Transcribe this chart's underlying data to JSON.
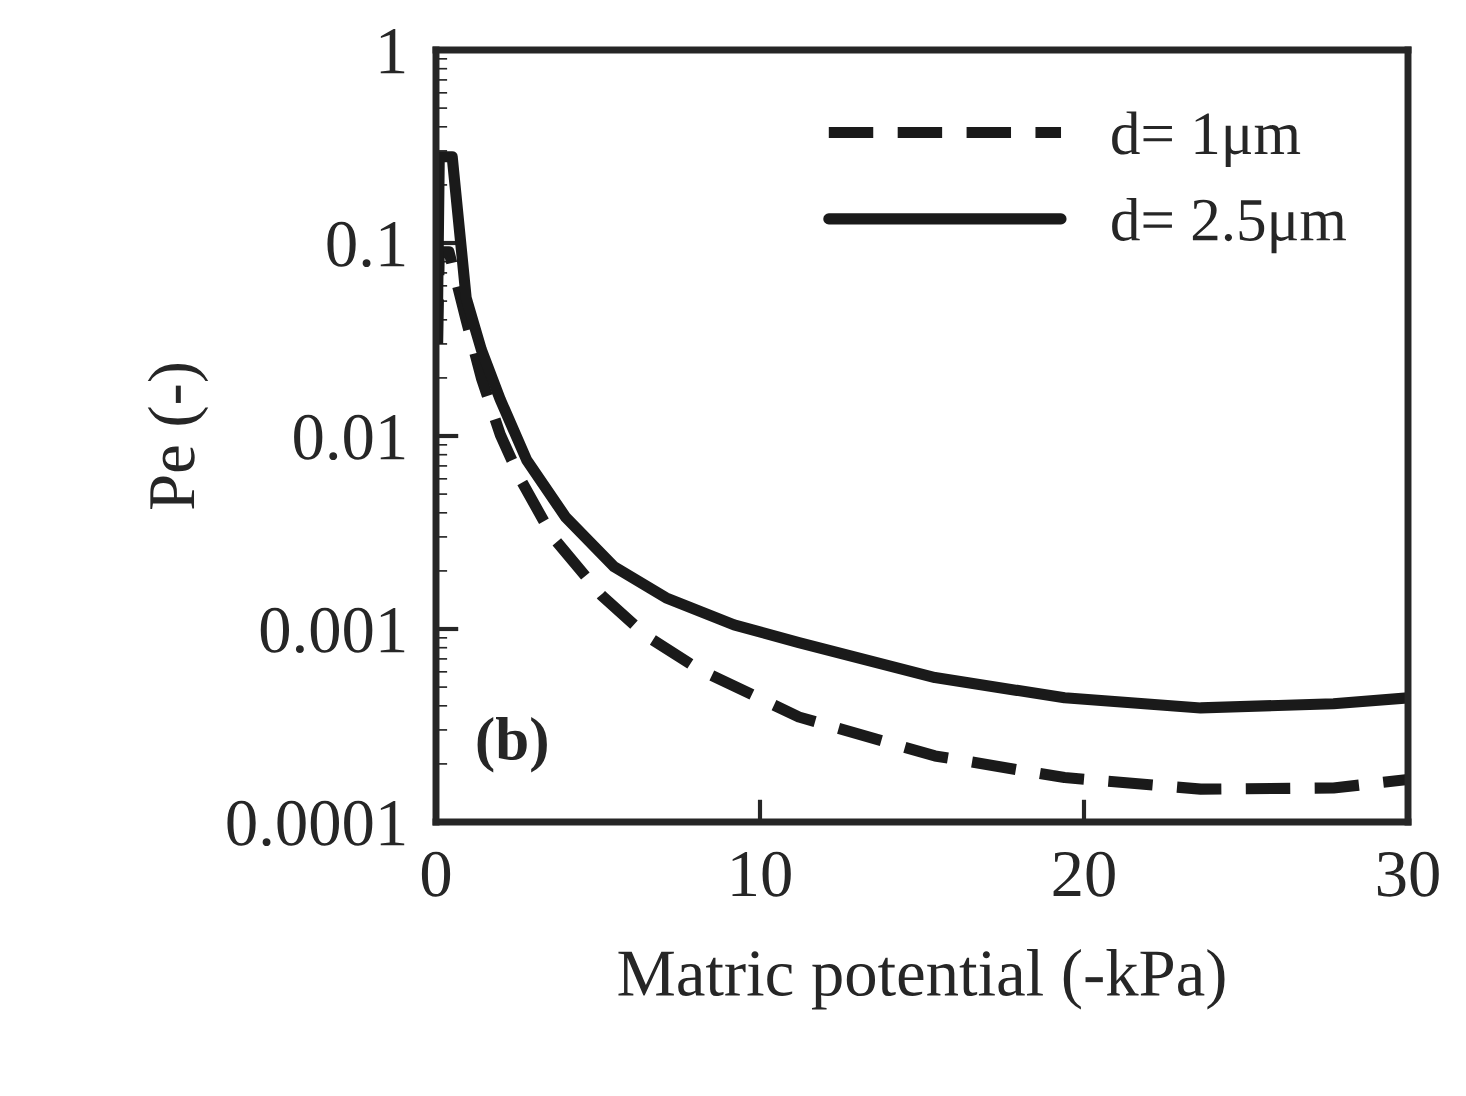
{
  "chart_data": {
    "type": "line",
    "xlabel": "Matric potential (-kPa)",
    "ylabel": "Pe (-)",
    "annotations": [
      "(b)"
    ],
    "log": "y",
    "xlim": [
      0,
      30
    ],
    "xticks": [
      0,
      10,
      20,
      30
    ],
    "ylim": [
      0.0001,
      1
    ],
    "yticks": [
      1,
      0.1,
      0.01,
      0.001,
      0.0001
    ],
    "grid": false,
    "legend": "top right",
    "marker": "none",
    "series": [
      {
        "name": "d= 1μm",
        "color": "#1a1a1a",
        "line_style": "dashed",
        "x": [
          0.05,
          0.1,
          0.4,
          0.93,
          1.4,
          1.98,
          2.6,
          3.6,
          5.1,
          6.5,
          8.1,
          11.2,
          15.4,
          19.4,
          23.6,
          27.7,
          30
        ],
        "values": [
          0.03,
          0.09,
          0.09,
          0.04,
          0.02,
          0.0102,
          0.006,
          0.003,
          0.0015,
          0.00092,
          0.00062,
          0.00035,
          0.00022,
          0.00017,
          0.000148,
          0.00015,
          0.000166
        ]
      },
      {
        "name": "d= 2.5μm",
        "color": "#1a1a1a",
        "line_style": "solid",
        "x": [
          0.05,
          0.1,
          0.5,
          0.93,
          1.4,
          1.98,
          2.8,
          4.0,
          5.5,
          7.1,
          9.2,
          11.2,
          15.4,
          19.4,
          23.6,
          27.7,
          30
        ],
        "values": [
          0.05,
          0.28,
          0.28,
          0.052,
          0.028,
          0.0155,
          0.0075,
          0.0038,
          0.0021,
          0.00145,
          0.00105,
          0.00085,
          0.00056,
          0.00044,
          0.00039,
          0.00041,
          0.00044
        ]
      }
    ]
  }
}
